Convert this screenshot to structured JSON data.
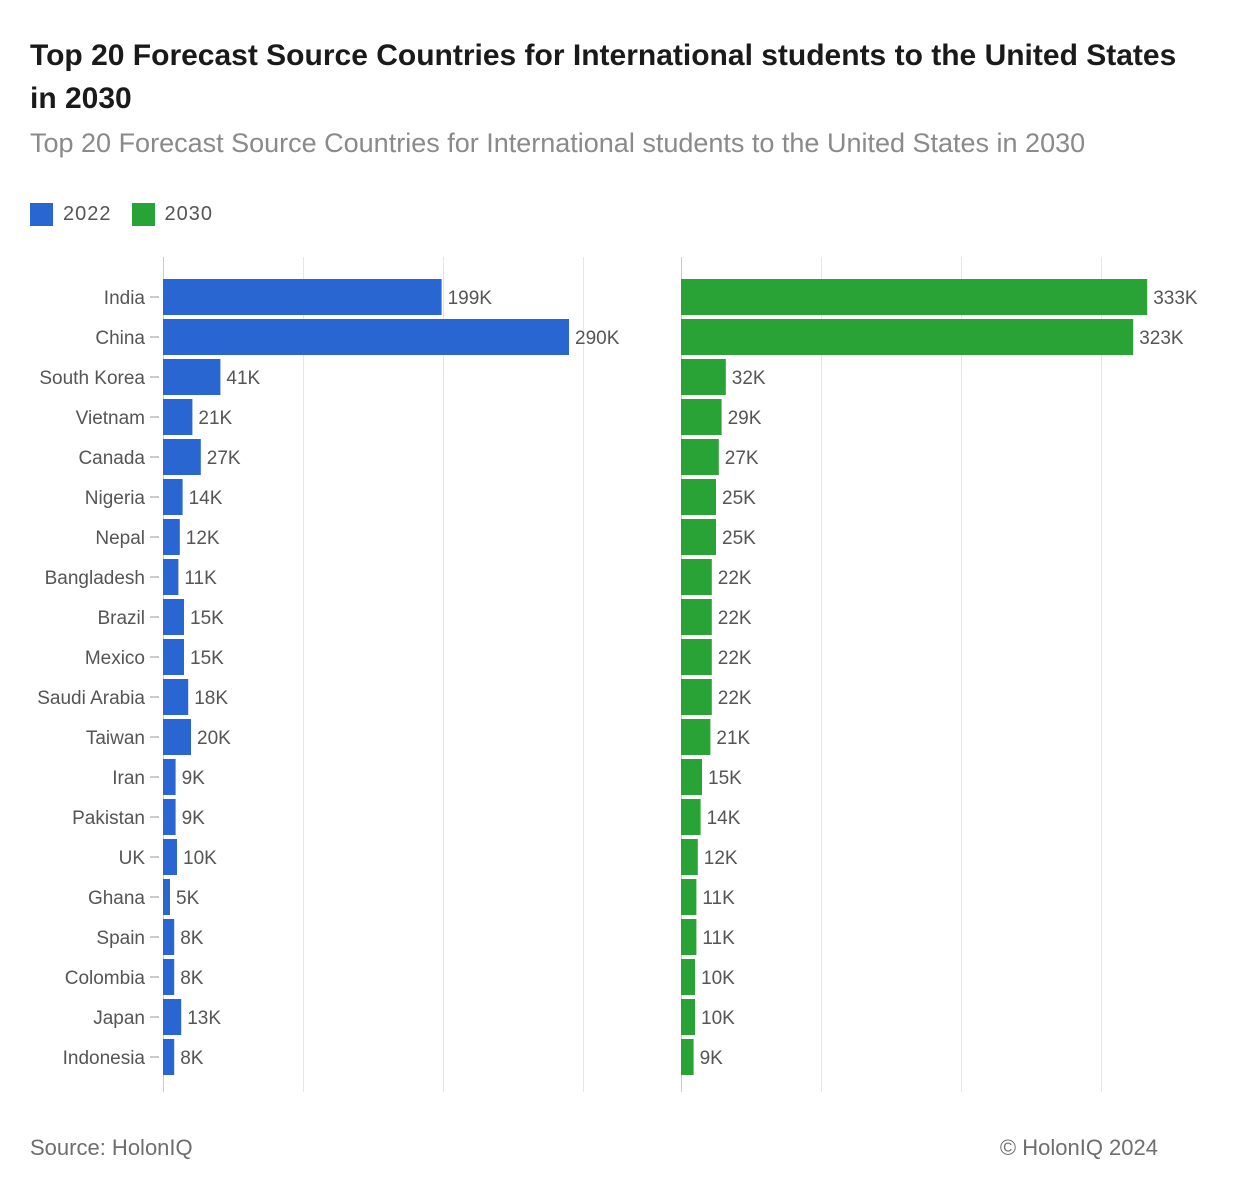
{
  "title": "Top 20 Forecast Source Countries for International students to the United States in 2030",
  "subtitle": "Top 20 Forecast Source Countries for International students to the United States in 2030",
  "colors": {
    "series_2022": "#2966d1",
    "series_2030": "#2aa336",
    "grid": "#e6e6e6",
    "axis_text": "#555555"
  },
  "legend": [
    {
      "label": "2022",
      "color": "#2966d1"
    },
    {
      "label": "2030",
      "color": "#2aa336"
    }
  ],
  "footer": {
    "source": "Source: HolonIQ",
    "copyright": "© HolonIQ 2024"
  },
  "chart_data": {
    "type": "bar",
    "orientation": "horizontal",
    "title": "Top 20 Forecast Source Countries for International students to the United States in 2030",
    "categories": [
      "India",
      "China",
      "South Korea",
      "Vietnam",
      "Canada",
      "Nigeria",
      "Nepal",
      "Bangladesh",
      "Brazil",
      "Mexico",
      "Saudi Arabia",
      "Taiwan",
      "Iran",
      "Pakistan",
      "UK",
      "Ghana",
      "Spain",
      "Colombia",
      "Japan",
      "Indonesia"
    ],
    "series": [
      {
        "name": "2022",
        "values": [
          199,
          290,
          41,
          21,
          27,
          14,
          12,
          11,
          15,
          15,
          18,
          20,
          9,
          9,
          10,
          5,
          8,
          8,
          13,
          8
        ],
        "labels": [
          "199K",
          "290K",
          "41K",
          "21K",
          "27K",
          "14K",
          "12K",
          "11K",
          "15K",
          "15K",
          "18K",
          "20K",
          "9K",
          "9K",
          "10K",
          "5K",
          "8K",
          "8K",
          "13K",
          "8K"
        ]
      },
      {
        "name": "2030",
        "values": [
          333,
          323,
          32,
          29,
          27,
          25,
          25,
          22,
          22,
          22,
          22,
          21,
          15,
          14,
          12,
          11,
          11,
          10,
          10,
          9
        ],
        "labels": [
          "333K",
          "323K",
          "32K",
          "29K",
          "27K",
          "25K",
          "25K",
          "22K",
          "22K",
          "22K",
          "22K",
          "21K",
          "15K",
          "14K",
          "12K",
          "11K",
          "11K",
          "10K",
          "10K",
          "9K"
        ]
      }
    ],
    "units": "thousands of students",
    "xlim": [
      0,
      400
    ],
    "grid": true,
    "legend_position": "top-left"
  }
}
